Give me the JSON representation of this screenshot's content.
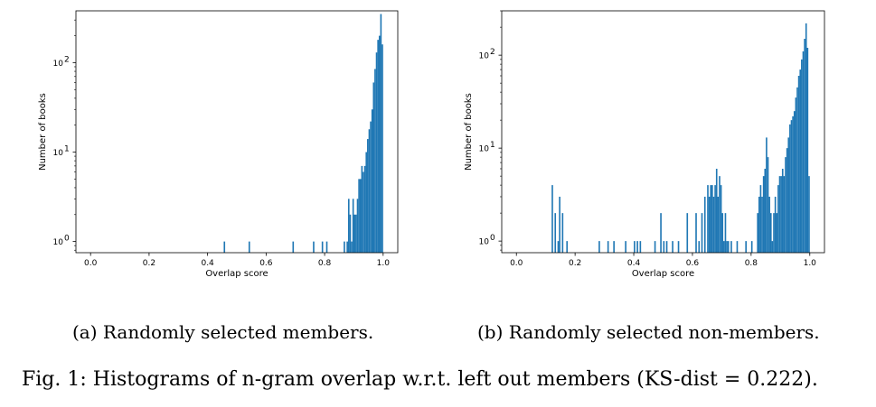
{
  "colors": {
    "bar": "#1f77b4",
    "axis": "#000000"
  },
  "chart_data": [
    {
      "type": "bar",
      "title": "",
      "xlabel": "Overlap score",
      "ylabel": "Number of books",
      "xlim": [
        -0.05,
        1.05
      ],
      "ylim": [
        0.75,
        380
      ],
      "yscale": "log",
      "xticks": [
        "0.0",
        "0.2",
        "0.4",
        "0.6",
        "0.8",
        "1.0"
      ],
      "xtick_values": [
        0,
        0.2,
        0.4,
        0.6,
        0.8,
        1.0
      ],
      "ytick_values": [
        1,
        10,
        100
      ],
      "ytick_mantissas": [
        "10",
        "10",
        "10"
      ],
      "ytick_exponents": [
        "0",
        "1",
        "2"
      ],
      "bin_width": 0.005,
      "bins": [
        [
          0.455,
          1
        ],
        [
          0.54,
          1
        ],
        [
          0.69,
          1
        ],
        [
          0.76,
          1
        ],
        [
          0.79,
          1
        ],
        [
          0.805,
          1
        ],
        [
          0.865,
          1
        ],
        [
          0.875,
          1
        ],
        [
          0.88,
          3
        ],
        [
          0.885,
          2
        ],
        [
          0.89,
          1
        ],
        [
          0.895,
          3
        ],
        [
          0.9,
          2
        ],
        [
          0.905,
          2
        ],
        [
          0.91,
          3
        ],
        [
          0.915,
          5
        ],
        [
          0.92,
          5
        ],
        [
          0.925,
          7
        ],
        [
          0.93,
          6
        ],
        [
          0.935,
          7
        ],
        [
          0.94,
          10
        ],
        [
          0.945,
          14
        ],
        [
          0.95,
          18
        ],
        [
          0.955,
          22
        ],
        [
          0.96,
          30
        ],
        [
          0.965,
          60
        ],
        [
          0.97,
          85
        ],
        [
          0.975,
          130
        ],
        [
          0.98,
          180
        ],
        [
          0.985,
          200
        ],
        [
          0.99,
          350
        ],
        [
          0.995,
          160
        ]
      ]
    },
    {
      "type": "bar",
      "title": "",
      "xlabel": "Overlap score",
      "ylabel": "Number of books",
      "xlim": [
        -0.05,
        1.05
      ],
      "ylim": [
        0.75,
        300
      ],
      "yscale": "log",
      "xticks": [
        "0.0",
        "0.2",
        "0.4",
        "0.6",
        "0.8",
        "1.0"
      ],
      "xtick_values": [
        0,
        0.2,
        0.4,
        0.6,
        0.8,
        1.0
      ],
      "ytick_values": [
        1,
        10,
        100
      ],
      "ytick_mantissas": [
        "10",
        "10",
        "10"
      ],
      "ytick_exponents": [
        "0",
        "1",
        "2"
      ],
      "bin_width": 0.005,
      "bins": [
        [
          0.12,
          4
        ],
        [
          0.13,
          2
        ],
        [
          0.14,
          1
        ],
        [
          0.145,
          3
        ],
        [
          0.155,
          2
        ],
        [
          0.17,
          1
        ],
        [
          0.28,
          1
        ],
        [
          0.31,
          1
        ],
        [
          0.33,
          1
        ],
        [
          0.37,
          1
        ],
        [
          0.4,
          1
        ],
        [
          0.41,
          1
        ],
        [
          0.42,
          1
        ],
        [
          0.47,
          1
        ],
        [
          0.49,
          2
        ],
        [
          0.5,
          1
        ],
        [
          0.51,
          1
        ],
        [
          0.53,
          1
        ],
        [
          0.55,
          1
        ],
        [
          0.58,
          2
        ],
        [
          0.61,
          2
        ],
        [
          0.62,
          1
        ],
        [
          0.63,
          2
        ],
        [
          0.64,
          3
        ],
        [
          0.65,
          4
        ],
        [
          0.655,
          3
        ],
        [
          0.66,
          4
        ],
        [
          0.665,
          4
        ],
        [
          0.67,
          3
        ],
        [
          0.675,
          4
        ],
        [
          0.68,
          6
        ],
        [
          0.685,
          3
        ],
        [
          0.69,
          5
        ],
        [
          0.695,
          4
        ],
        [
          0.7,
          2
        ],
        [
          0.705,
          1
        ],
        [
          0.71,
          2
        ],
        [
          0.715,
          1
        ],
        [
          0.72,
          1
        ],
        [
          0.73,
          1
        ],
        [
          0.75,
          1
        ],
        [
          0.78,
          1
        ],
        [
          0.8,
          1
        ],
        [
          0.82,
          2
        ],
        [
          0.825,
          3
        ],
        [
          0.83,
          4
        ],
        [
          0.835,
          3
        ],
        [
          0.84,
          5
        ],
        [
          0.845,
          6
        ],
        [
          0.85,
          13
        ],
        [
          0.855,
          8
        ],
        [
          0.86,
          3
        ],
        [
          0.865,
          2
        ],
        [
          0.87,
          1
        ],
        [
          0.875,
          2
        ],
        [
          0.88,
          3
        ],
        [
          0.885,
          2
        ],
        [
          0.89,
          4
        ],
        [
          0.895,
          5
        ],
        [
          0.9,
          5
        ],
        [
          0.905,
          6
        ],
        [
          0.91,
          5
        ],
        [
          0.915,
          8
        ],
        [
          0.92,
          10
        ],
        [
          0.925,
          13
        ],
        [
          0.93,
          18
        ],
        [
          0.935,
          20
        ],
        [
          0.94,
          22
        ],
        [
          0.945,
          25
        ],
        [
          0.95,
          35
        ],
        [
          0.955,
          45
        ],
        [
          0.96,
          60
        ],
        [
          0.965,
          70
        ],
        [
          0.97,
          90
        ],
        [
          0.975,
          110
        ],
        [
          0.98,
          150
        ],
        [
          0.985,
          220
        ],
        [
          0.99,
          120
        ],
        [
          0.995,
          5
        ]
      ]
    }
  ],
  "captions": {
    "a": "(a) Randomly selected members.",
    "b": "(b) Randomly selected non-members.",
    "figure": "Fig. 1: Histograms of n-gram overlap w.r.t. left out members (KS-dist = 0.222)."
  }
}
